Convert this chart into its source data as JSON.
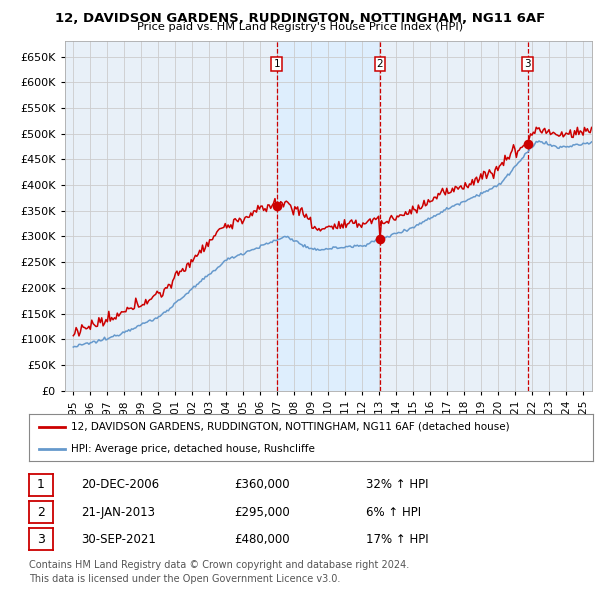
{
  "title_line1": "12, DAVIDSON GARDENS, RUDDINGTON, NOTTINGHAM, NG11 6AF",
  "title_line2": "Price paid vs. HM Land Registry's House Price Index (HPI)",
  "ylim": [
    0,
    680000
  ],
  "yticks": [
    0,
    50000,
    100000,
    150000,
    200000,
    250000,
    300000,
    350000,
    400000,
    450000,
    500000,
    550000,
    600000,
    650000
  ],
  "xlim_start": 1994.5,
  "xlim_end": 2025.5,
  "sale_color": "#cc0000",
  "hpi_color": "#6699cc",
  "shade_color": "#ddeeff",
  "grid_color": "#cccccc",
  "background_color": "#ffffff",
  "plot_bg_color": "#e8f0f8",
  "legend_entries": [
    "12, DAVIDSON GARDENS, RUDDINGTON, NOTTINGHAM, NG11 6AF (detached house)",
    "HPI: Average price, detached house, Rushcliffe"
  ],
  "sales": [
    {
      "num": 1,
      "date_str": "20-DEC-2006",
      "date_x": 2006.97,
      "price": 360000,
      "pct": "32%",
      "dir": "↑"
    },
    {
      "num": 2,
      "date_str": "21-JAN-2013",
      "date_x": 2013.05,
      "price": 295000,
      "pct": "6%",
      "dir": "↑"
    },
    {
      "num": 3,
      "date_str": "30-SEP-2021",
      "date_x": 2021.75,
      "price": 480000,
      "pct": "17%",
      "dir": "↑"
    }
  ],
  "vline_color": "#cc0000",
  "footer_line1": "Contains HM Land Registry data © Crown copyright and database right 2024.",
  "footer_line2": "This data is licensed under the Open Government Licence v3.0."
}
